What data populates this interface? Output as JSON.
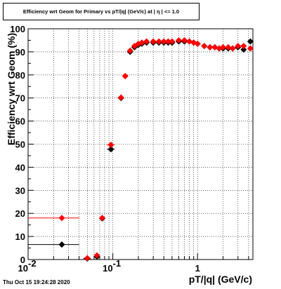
{
  "title": "Efficiency wrt Geom for Primary vs pT/|q| (GeV/c) at | η | <= 1.0",
  "footer": "Thu Oct 15 19:24:28 2020",
  "chart_data": {
    "type": "scatter",
    "title": "Efficiency wrt Geom for Primary vs pT/|q| (GeV/c) at | η | <= 1.0",
    "xlabel": "pT/|q| (GeV/c)",
    "ylabel": "Efficiency wrt Geom (%)",
    "xscale": "log",
    "xlim": [
      0.01,
      4.5
    ],
    "ylim": [
      0,
      100
    ],
    "grid": true,
    "y_ticks": [
      "0",
      "10",
      "20",
      "30",
      "40",
      "50",
      "60",
      "70",
      "80",
      "90",
      "100"
    ],
    "x_ticks": [
      "10",
      "10",
      "1"
    ],
    "x_tick_exponents": [
      "-2",
      "-1",
      ""
    ],
    "series": [
      {
        "color": "#000000",
        "marker": "diamond",
        "points": [
          {
            "x": 0.025,
            "y": 6.5,
            "xerr": [
              0.01,
              0.04
            ]
          },
          {
            "x": 0.05,
            "y": 0.4,
            "xerr": [
              0.045,
              0.055
            ]
          },
          {
            "x": 0.065,
            "y": 1.2
          },
          {
            "x": 0.075,
            "y": 17.8
          },
          {
            "x": 0.095,
            "y": 47.8,
            "xerr": [
              0.085,
              0.105
            ]
          },
          {
            "x": 0.125,
            "y": 70.0,
            "xerr": [
              0.115,
              0.135
            ]
          },
          {
            "x": 0.14,
            "y": 79.5
          },
          {
            "x": 0.16,
            "y": 90.0
          },
          {
            "x": 0.18,
            "y": 92.0
          },
          {
            "x": 0.2,
            "y": 93.0
          },
          {
            "x": 0.22,
            "y": 93.5
          },
          {
            "x": 0.25,
            "y": 94.0
          },
          {
            "x": 0.3,
            "y": 94.0
          },
          {
            "x": 0.35,
            "y": 94.0
          },
          {
            "x": 0.4,
            "y": 94.0
          },
          {
            "x": 0.45,
            "y": 94.0
          },
          {
            "x": 0.5,
            "y": 94.0
          },
          {
            "x": 0.6,
            "y": 94.5
          },
          {
            "x": 0.7,
            "y": 94.5
          },
          {
            "x": 0.8,
            "y": 94.5
          },
          {
            "x": 0.9,
            "y": 94.0
          },
          {
            "x": 1.0,
            "y": 93.5
          },
          {
            "x": 1.2,
            "y": 92.5
          },
          {
            "x": 1.4,
            "y": 92.0
          },
          {
            "x": 1.6,
            "y": 92.0
          },
          {
            "x": 1.8,
            "y": 91.5
          },
          {
            "x": 2.0,
            "y": 91.5
          },
          {
            "x": 2.3,
            "y": 91.5
          },
          {
            "x": 2.6,
            "y": 91.5
          },
          {
            "x": 3.0,
            "y": 92.0
          },
          {
            "x": 3.5,
            "y": 91.0
          },
          {
            "x": 4.2,
            "y": 94.5
          }
        ]
      },
      {
        "color": "#ff0000",
        "marker": "diamond",
        "points": [
          {
            "x": 0.025,
            "y": 18.0,
            "xerr": [
              0.01,
              0.04
            ]
          },
          {
            "x": 0.05,
            "y": 0.6,
            "xerr": [
              0.045,
              0.055
            ]
          },
          {
            "x": 0.065,
            "y": 1.8
          },
          {
            "x": 0.075,
            "y": 18.0
          },
          {
            "x": 0.095,
            "y": 49.7,
            "xerr": [
              0.085,
              0.105
            ]
          },
          {
            "x": 0.125,
            "y": 70.2,
            "xerr": [
              0.115,
              0.135
            ]
          },
          {
            "x": 0.14,
            "y": 79.5
          },
          {
            "x": 0.16,
            "y": 90.5
          },
          {
            "x": 0.18,
            "y": 92.5
          },
          {
            "x": 0.2,
            "y": 93.5
          },
          {
            "x": 0.22,
            "y": 94.0
          },
          {
            "x": 0.25,
            "y": 94.5
          },
          {
            "x": 0.3,
            "y": 94.5
          },
          {
            "x": 0.35,
            "y": 94.5
          },
          {
            "x": 0.4,
            "y": 94.5
          },
          {
            "x": 0.45,
            "y": 94.5
          },
          {
            "x": 0.5,
            "y": 94.5
          },
          {
            "x": 0.6,
            "y": 95.0
          },
          {
            "x": 0.7,
            "y": 95.0
          },
          {
            "x": 0.8,
            "y": 94.5
          },
          {
            "x": 0.9,
            "y": 94.0
          },
          {
            "x": 1.0,
            "y": 93.5
          },
          {
            "x": 1.2,
            "y": 92.5
          },
          {
            "x": 1.4,
            "y": 92.0
          },
          {
            "x": 1.6,
            "y": 92.0
          },
          {
            "x": 1.8,
            "y": 91.5
          },
          {
            "x": 2.0,
            "y": 92.0
          },
          {
            "x": 2.3,
            "y": 92.0
          },
          {
            "x": 2.6,
            "y": 91.5
          },
          {
            "x": 3.0,
            "y": 92.5
          },
          {
            "x": 3.5,
            "y": 92.5
          },
          {
            "x": 4.2,
            "y": 91.5
          }
        ]
      }
    ]
  }
}
